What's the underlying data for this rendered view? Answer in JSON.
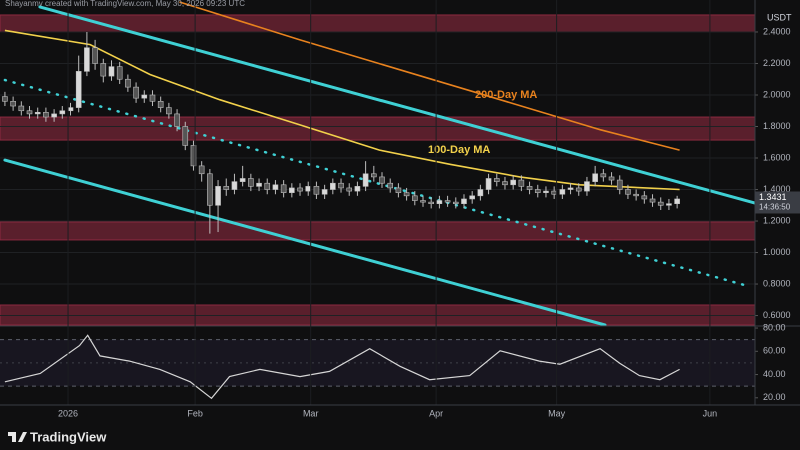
{
  "header": "Shayanmv created with TradingView.com, May 30, 2026 09:23 UTC",
  "footer": {
    "brand": "TradingView"
  },
  "chart_data": [
    {
      "type": "candlestick",
      "currency": "USDT",
      "xlim": [
        -0.6,
        91.5
      ],
      "ylim": [
        0.54,
        2.603
      ],
      "yticks": [
        {
          "value": 2.4,
          "label": "2.4000"
        },
        {
          "value": 2.2,
          "label": "2.2000"
        },
        {
          "value": 2.0,
          "label": "2.0000"
        },
        {
          "value": 1.8,
          "label": "1.8000"
        },
        {
          "value": 1.6,
          "label": "1.6000"
        },
        {
          "value": 1.4,
          "label": "1.4000"
        },
        {
          "value": 1.2,
          "label": "1.2000"
        },
        {
          "value": 1.0,
          "label": "1.0000"
        },
        {
          "value": 0.8,
          "label": "0.8000"
        },
        {
          "value": 0.6,
          "label": "0.6000"
        }
      ],
      "grid": true,
      "up_color": "#d9d9d9",
      "down_color": "#555555",
      "wick_color": "#bdbdbd",
      "open": [
        1.99,
        1.96,
        1.93,
        1.9,
        1.88,
        1.89,
        1.86,
        1.88,
        1.9,
        1.92,
        2.15,
        2.3,
        2.2,
        2.12,
        2.18,
        2.1,
        2.05,
        1.98,
        2.0,
        1.96,
        1.92,
        1.88,
        1.8,
        1.68,
        1.55,
        1.5,
        1.3,
        1.42,
        1.4,
        1.45,
        1.47,
        1.42,
        1.44,
        1.4,
        1.43,
        1.38,
        1.41,
        1.39,
        1.42,
        1.37,
        1.4,
        1.44,
        1.41,
        1.39,
        1.42,
        1.5,
        1.48,
        1.44,
        1.41,
        1.38,
        1.36,
        1.33,
        1.32,
        1.31,
        1.33,
        1.32,
        1.31,
        1.34,
        1.36,
        1.4,
        1.47,
        1.45,
        1.43,
        1.46,
        1.42,
        1.4,
        1.38,
        1.39,
        1.37,
        1.4,
        1.41,
        1.39,
        1.45,
        1.5,
        1.48,
        1.46,
        1.4,
        1.37,
        1.36,
        1.34,
        1.32,
        1.3,
        1.31
      ],
      "high": [
        2.02,
        1.99,
        1.96,
        1.93,
        1.92,
        1.92,
        1.91,
        1.93,
        1.95,
        2.25,
        2.4,
        2.35,
        2.23,
        2.22,
        2.21,
        2.13,
        2.08,
        2.03,
        2.03,
        1.99,
        1.95,
        1.91,
        1.83,
        1.71,
        1.58,
        1.53,
        1.46,
        1.47,
        1.5,
        1.55,
        1.5,
        1.47,
        1.47,
        1.46,
        1.46,
        1.44,
        1.44,
        1.45,
        1.45,
        1.43,
        1.47,
        1.47,
        1.44,
        1.45,
        1.58,
        1.55,
        1.51,
        1.47,
        1.44,
        1.41,
        1.39,
        1.36,
        1.35,
        1.36,
        1.36,
        1.35,
        1.37,
        1.39,
        1.43,
        1.5,
        1.5,
        1.48,
        1.49,
        1.49,
        1.45,
        1.43,
        1.42,
        1.42,
        1.43,
        1.44,
        1.44,
        1.48,
        1.55,
        1.53,
        1.51,
        1.49,
        1.43,
        1.4,
        1.39,
        1.37,
        1.35,
        1.34,
        1.36
      ],
      "low": [
        1.93,
        1.9,
        1.87,
        1.85,
        1.85,
        1.83,
        1.83,
        1.85,
        1.87,
        1.89,
        2.12,
        2.16,
        2.08,
        2.09,
        2.07,
        2.02,
        1.95,
        1.95,
        1.93,
        1.89,
        1.85,
        1.77,
        1.65,
        1.52,
        1.45,
        1.12,
        1.13,
        1.36,
        1.37,
        1.42,
        1.39,
        1.39,
        1.37,
        1.37,
        1.35,
        1.35,
        1.36,
        1.36,
        1.34,
        1.34,
        1.37,
        1.38,
        1.36,
        1.36,
        1.39,
        1.45,
        1.41,
        1.38,
        1.35,
        1.33,
        1.3,
        1.29,
        1.28,
        1.28,
        1.29,
        1.28,
        1.28,
        1.31,
        1.33,
        1.37,
        1.42,
        1.4,
        1.4,
        1.39,
        1.37,
        1.35,
        1.35,
        1.34,
        1.34,
        1.37,
        1.36,
        1.36,
        1.42,
        1.45,
        1.43,
        1.37,
        1.34,
        1.33,
        1.31,
        1.29,
        1.27,
        1.27,
        1.28
      ],
      "close": [
        1.96,
        1.93,
        1.9,
        1.88,
        1.89,
        1.86,
        1.88,
        1.9,
        1.92,
        2.15,
        2.3,
        2.2,
        2.12,
        2.18,
        2.1,
        2.05,
        1.98,
        2.0,
        1.96,
        1.92,
        1.88,
        1.8,
        1.68,
        1.55,
        1.5,
        1.3,
        1.42,
        1.4,
        1.45,
        1.47,
        1.42,
        1.44,
        1.4,
        1.43,
        1.38,
        1.41,
        1.39,
        1.42,
        1.37,
        1.4,
        1.44,
        1.41,
        1.39,
        1.42,
        1.5,
        1.48,
        1.44,
        1.41,
        1.38,
        1.36,
        1.33,
        1.32,
        1.31,
        1.33,
        1.32,
        1.31,
        1.34,
        1.36,
        1.4,
        1.47,
        1.45,
        1.43,
        1.46,
        1.42,
        1.4,
        1.38,
        1.39,
        1.37,
        1.4,
        1.41,
        1.39,
        1.45,
        1.5,
        1.48,
        1.46,
        1.4,
        1.37,
        1.36,
        1.34,
        1.32,
        1.3,
        1.31,
        1.34
      ],
      "series": [
        {
          "name": "100-Day MA",
          "color": "#f2d14b",
          "x": [
            0,
            10.4,
            17.7,
            26.2,
            36,
            45.7,
            54.3,
            62.8,
            70.1,
            82.3
          ],
          "values": [
            2.41,
            2.32,
            2.13,
            1.97,
            1.81,
            1.65,
            1.56,
            1.48,
            1.43,
            1.4
          ]
        },
        {
          "name": "200-Day MA",
          "color": "#e8821e",
          "x": [
            21.3,
            36,
            48.2,
            60.4,
            72.6,
            82.3
          ],
          "values": [
            2.59,
            2.35,
            2.16,
            1.97,
            1.78,
            1.65
          ]
        }
      ],
      "trendlines": [
        {
          "color": "#3fd0d4",
          "style": "solid",
          "x": [
            4.27,
            91.5
          ],
          "values": [
            2.559,
            1.314
          ]
        },
        {
          "color": "#3fd0d4",
          "style": "solid",
          "x": [
            0,
            73.2
          ],
          "values": [
            1.587,
            0.54
          ]
        },
        {
          "color": "#3fd0d4",
          "style": "dotted",
          "x": [
            0,
            90.2
          ],
          "values": [
            2.095,
            0.794
          ]
        }
      ],
      "zone_color": "#8c2a40",
      "zones": [
        [
          2.4,
          2.508
        ],
        [
          1.714,
          1.86
        ],
        [
          1.08,
          1.194
        ],
        [
          0.54,
          0.667
        ]
      ],
      "last_price": {
        "value": 1.3431,
        "countdown": "14:36:50"
      }
    },
    {
      "type": "line",
      "xlim": [
        -0.6,
        91.5
      ],
      "ylim": [
        13.8,
        80.9
      ],
      "yticks": [
        {
          "value": 80,
          "label": "80.00"
        },
        {
          "value": 60,
          "label": "60.00"
        },
        {
          "value": 40,
          "label": "40.00"
        },
        {
          "value": 20,
          "label": "20.00"
        }
      ],
      "band": [
        30,
        70
      ],
      "midline": 50,
      "color": "#d6d6d6",
      "x": [
        0,
        4.3,
        9.1,
        10.1,
        11.6,
        15.2,
        18.9,
        22.6,
        25.2,
        27.4,
        31.1,
        36,
        39.6,
        44.5,
        48.2,
        51.8,
        56.7,
        60.4,
        65.2,
        67.7,
        72.6,
        75,
        77.4,
        79.9,
        82.3
      ],
      "values": [
        33.8,
        40.9,
        64.9,
        73.8,
        56,
        51.6,
        44.4,
        33.8,
        19.6,
        38.2,
        44.4,
        38.2,
        42.7,
        62.2,
        47.1,
        35.6,
        39.1,
        60.4,
        51.6,
        48.9,
        62.2,
        49.8,
        39.1,
        35.6,
        44.4
      ],
      "xticks": [
        {
          "value": 7.7,
          "label": "2026"
        },
        {
          "value": 23.2,
          "label": "Feb"
        },
        {
          "value": 37.3,
          "label": "Mar"
        },
        {
          "value": 52.6,
          "label": "Apr"
        },
        {
          "value": 67.3,
          "label": "May"
        },
        {
          "value": 86,
          "label": "Jun"
        }
      ]
    }
  ]
}
